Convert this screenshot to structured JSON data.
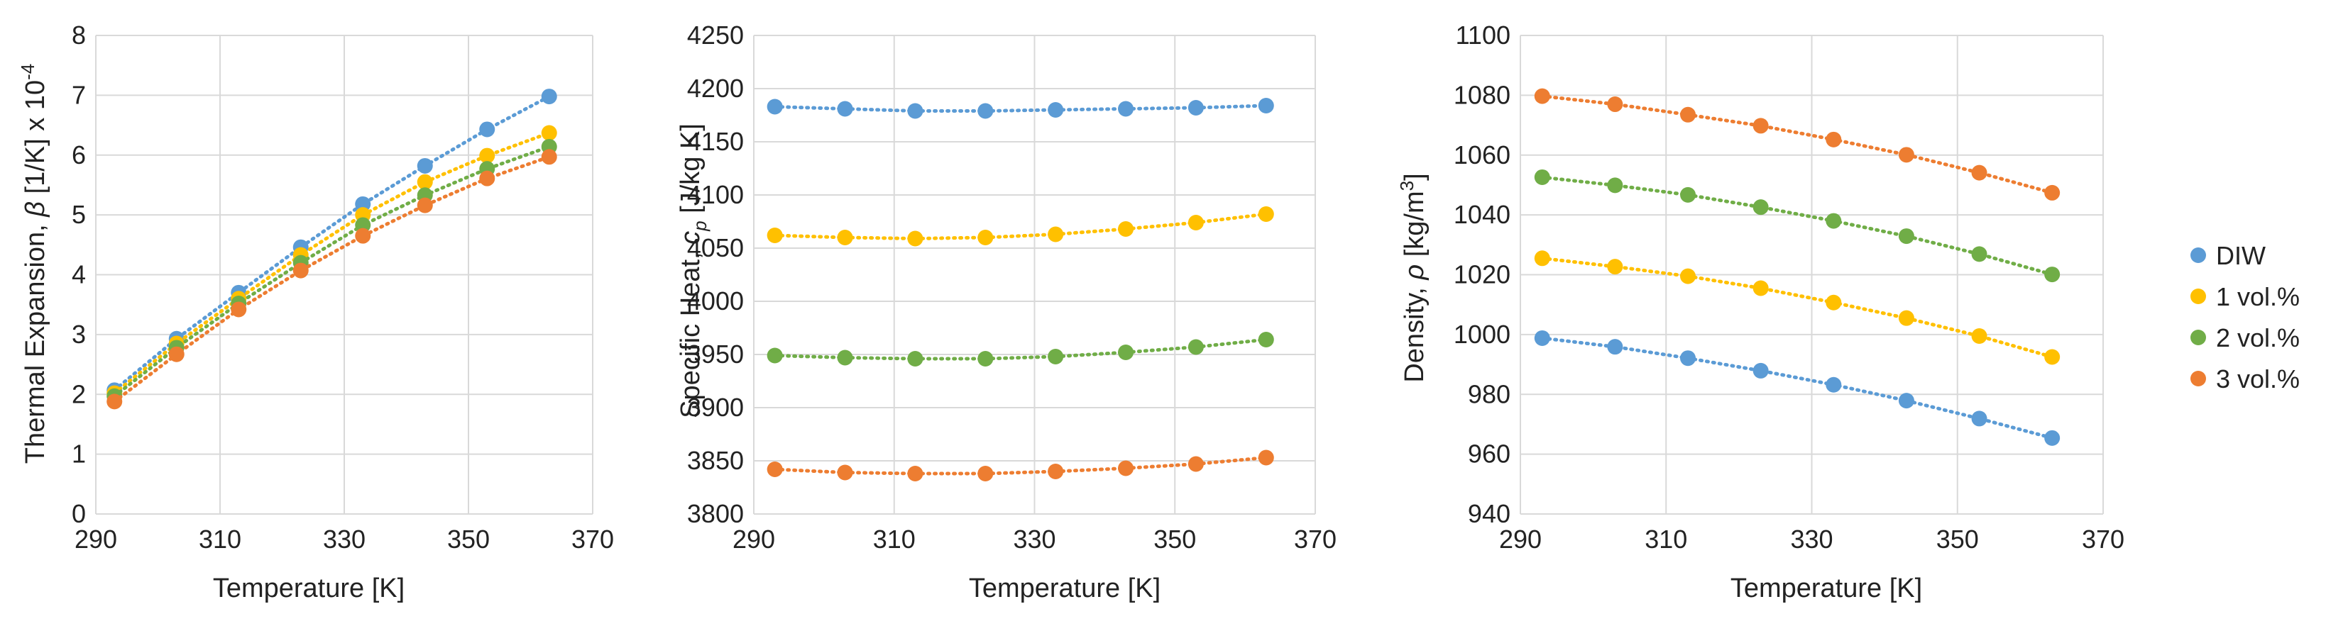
{
  "legend": [
    {
      "label": "DIW",
      "color": "#5b9bd5"
    },
    {
      "label": "1 vol.%",
      "color": "#ffc000"
    },
    {
      "label": "2 vol.%",
      "color": "#70ad47"
    },
    {
      "label": "3 vol.%",
      "color": "#ed7d31"
    }
  ],
  "chart_data": [
    {
      "type": "line",
      "title": "",
      "xlabel": "Temperature [K]",
      "ylabel_parts": [
        "Thermal Expansion, ",
        "β",
        " [1/K]  x 10",
        "-4"
      ],
      "xlim": [
        290,
        370
      ],
      "ylim": [
        0,
        8
      ],
      "xticks": [
        290,
        310,
        330,
        350,
        370
      ],
      "yticks": [
        0,
        1,
        2,
        3,
        4,
        5,
        6,
        7,
        8
      ],
      "x": [
        293,
        303,
        313,
        323,
        333,
        343,
        353,
        363
      ],
      "series": [
        {
          "name": "DIW",
          "values": [
            2.07,
            2.93,
            3.7,
            4.46,
            5.18,
            5.82,
            6.43,
            6.98
          ]
        },
        {
          "name": "1 vol.%",
          "values": [
            2.02,
            2.85,
            3.6,
            4.33,
            5.0,
            5.55,
            5.99,
            6.37
          ]
        },
        {
          "name": "2 vol.%",
          "values": [
            1.97,
            2.78,
            3.52,
            4.2,
            4.83,
            5.33,
            5.77,
            6.14
          ]
        },
        {
          "name": "3 vol.%",
          "values": [
            1.88,
            2.67,
            3.42,
            4.07,
            4.65,
            5.16,
            5.61,
            5.97
          ]
        }
      ]
    },
    {
      "type": "line",
      "title": "",
      "xlabel": "Temperature [K]",
      "ylabel_parts": [
        "Specific Heat, ",
        "c",
        "p",
        " [J/kg K]"
      ],
      "xlim": [
        290,
        370
      ],
      "ylim": [
        3800,
        4250
      ],
      "xticks": [
        290,
        310,
        330,
        350,
        370
      ],
      "yticks": [
        3800,
        3850,
        3900,
        3950,
        4000,
        4050,
        4100,
        4150,
        4200,
        4250
      ],
      "x": [
        293,
        303,
        313,
        323,
        333,
        343,
        353,
        363
      ],
      "series": [
        {
          "name": "DIW",
          "values": [
            4183,
            4181,
            4179,
            4179,
            4180,
            4181,
            4182,
            4184
          ]
        },
        {
          "name": "1 vol.%",
          "values": [
            4062,
            4060,
            4059,
            4060,
            4063,
            4068,
            4074,
            4082
          ]
        },
        {
          "name": "2 vol.%",
          "values": [
            3949,
            3947,
            3946,
            3946,
            3948,
            3952,
            3957,
            3964
          ]
        },
        {
          "name": "3 vol.%",
          "values": [
            3842,
            3839,
            3838,
            3838,
            3840,
            3843,
            3847,
            3853
          ]
        }
      ]
    },
    {
      "type": "line",
      "title": "",
      "xlabel": "Temperature [K]",
      "ylabel_parts": [
        "Density, ",
        "ρ",
        " [kg/m",
        "3",
        "]"
      ],
      "xlim": [
        290,
        370
      ],
      "ylim": [
        940,
        1100
      ],
      "xticks": [
        290,
        310,
        330,
        350,
        370
      ],
      "yticks": [
        940,
        960,
        980,
        1000,
        1020,
        1040,
        1060,
        1080,
        1100
      ],
      "x": [
        293,
        303,
        313,
        323,
        333,
        343,
        353,
        363
      ],
      "series": [
        {
          "name": "DIW",
          "values": [
            998.8,
            995.9,
            992.1,
            987.9,
            983.2,
            977.9,
            971.9,
            965.4
          ]
        },
        {
          "name": "1 vol.%",
          "values": [
            1025.5,
            1022.7,
            1019.5,
            1015.5,
            1010.7,
            1005.5,
            999.5,
            992.5
          ]
        },
        {
          "name": "2 vol.%",
          "values": [
            1052.6,
            1049.9,
            1046.7,
            1042.6,
            1038.0,
            1032.9,
            1026.9,
            1020.1
          ]
        },
        {
          "name": "3 vol.%",
          "values": [
            1079.7,
            1077.0,
            1073.5,
            1069.8,
            1065.2,
            1060.1,
            1054.1,
            1047.4
          ]
        }
      ]
    }
  ]
}
